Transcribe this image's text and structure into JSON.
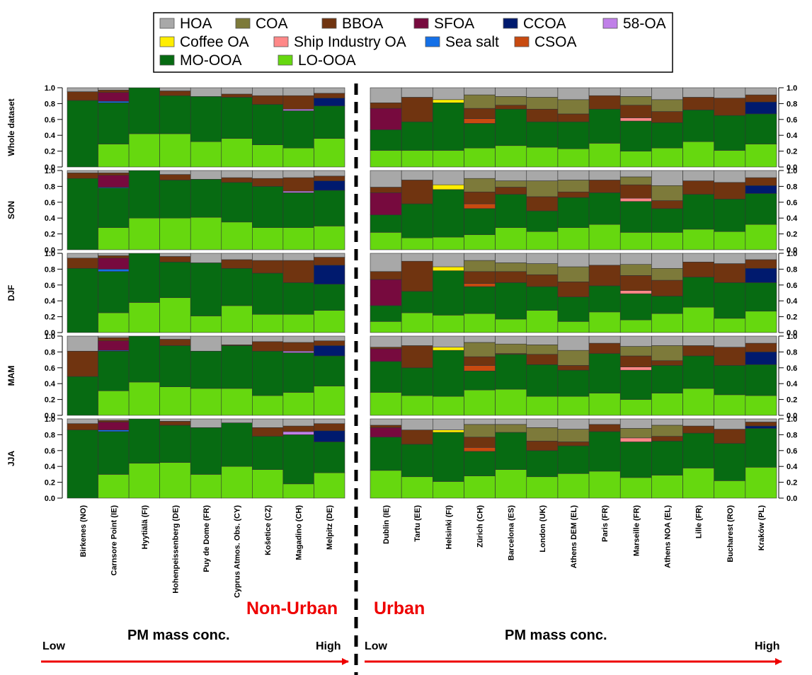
{
  "chart_data": {
    "type": "stacked-bar",
    "legend": [
      {
        "name": "HOA",
        "color": "#a8a8a8"
      },
      {
        "name": "COA",
        "color": "#7d7a3a"
      },
      {
        "name": "BBOA",
        "color": "#703410"
      },
      {
        "name": "SFOA",
        "color": "#770a3e"
      },
      {
        "name": "CCOA",
        "color": "#001a6e"
      },
      {
        "name": "58-OA",
        "color": "#c080e8"
      },
      {
        "name": "Coffee OA",
        "color": "#ffee00"
      },
      {
        "name": "Ship Industry OA",
        "color": "#ff8888"
      },
      {
        "name": "Sea salt",
        "color": "#1470e8"
      },
      {
        "name": "CSOA",
        "color": "#c84a10"
      },
      {
        "name": "MO-OOA",
        "color": "#076b12"
      },
      {
        "name": "LO-OOA",
        "color": "#66d80f"
      }
    ],
    "ylim": [
      0,
      1
    ],
    "yticks": [
      "0.0",
      "0.2",
      "0.4",
      "0.6",
      "0.8",
      "1.0"
    ],
    "panels": [
      "Whole dataset",
      "SON",
      "DJF",
      "MAM",
      "JJA"
    ],
    "groups": [
      {
        "name": "Non-Urban",
        "sites": [
          "Birkenes (NO)",
          "Carnsore Point (IE)",
          "Hyytiälä (FI)",
          "Hohenpeissenberg (DE)",
          "Puy de Dome (FR)",
          "Cyprus Atmos. Obs. (CY)",
          "Košetice (CZ)",
          "Magadino (CH)",
          "Melpitz (DE)"
        ],
        "data": {
          "Whole dataset": [
            {
              "HOA": 0.05,
              "BBOA": 0.11,
              "MO-OOA": 0.84
            },
            {
              "HOA": 0.03,
              "BBOA": 0.03,
              "SFOA": 0.11,
              "Sea salt": 0.02,
              "MO-OOA": 0.52,
              "LO-OOA": 0.29
            },
            {
              "MO-OOA": 0.58,
              "LO-OOA": 0.42
            },
            {
              "HOA": 0.04,
              "BBOA": 0.06,
              "MO-OOA": 0.48,
              "LO-OOA": 0.42
            },
            {
              "HOA": 0.11,
              "MO-OOA": 0.57,
              "LO-OOA": 0.32
            },
            {
              "HOA": 0.08,
              "BBOA": 0.04,
              "MO-OOA": 0.52,
              "LO-OOA": 0.36
            },
            {
              "HOA": 0.1,
              "BBOA": 0.11,
              "MO-OOA": 0.51,
              "LO-OOA": 0.28
            },
            {
              "HOA": 0.1,
              "BBOA": 0.17,
              "58-OA": 0.02,
              "MO-OOA": 0.47,
              "LO-OOA": 0.24
            },
            {
              "HOA": 0.07,
              "BBOA": 0.06,
              "CCOA": 0.1,
              "MO-OOA": 0.41,
              "LO-OOA": 0.36
            }
          ],
          "SON": [
            {
              "HOA": 0.03,
              "BBOA": 0.07,
              "MO-OOA": 0.9
            },
            {
              "HOA": 0.03,
              "BBOA": 0.03,
              "SFOA": 0.15,
              "Sea salt": 0.01,
              "MO-OOA": 0.5,
              "LO-OOA": 0.28
            },
            {
              "MO-OOA": 0.6,
              "LO-OOA": 0.4
            },
            {
              "HOA": 0.05,
              "BBOA": 0.07,
              "MO-OOA": 0.48,
              "LO-OOA": 0.4
            },
            {
              "HOA": 0.11,
              "MO-OOA": 0.48,
              "LO-OOA": 0.41
            },
            {
              "HOA": 0.09,
              "BBOA": 0.06,
              "MO-OOA": 0.5,
              "LO-OOA": 0.35
            },
            {
              "HOA": 0.1,
              "BBOA": 0.1,
              "MO-OOA": 0.52,
              "LO-OOA": 0.28
            },
            {
              "HOA": 0.09,
              "BBOA": 0.17,
              "58-OA": 0.02,
              "MO-OOA": 0.44,
              "LO-OOA": 0.28
            },
            {
              "HOA": 0.07,
              "BBOA": 0.06,
              "CCOA": 0.12,
              "MO-OOA": 0.45,
              "LO-OOA": 0.3
            }
          ],
          "DJF": [
            {
              "HOA": 0.06,
              "BBOA": 0.13,
              "MO-OOA": 0.81
            },
            {
              "HOA": 0.03,
              "BBOA": 0.03,
              "SFOA": 0.14,
              "Sea salt": 0.03,
              "MO-OOA": 0.52,
              "LO-OOA": 0.25
            },
            {
              "MO-OOA": 0.62,
              "LO-OOA": 0.38
            },
            {
              "HOA": 0.04,
              "BBOA": 0.07,
              "MO-OOA": 0.45,
              "LO-OOA": 0.44
            },
            {
              "HOA": 0.12,
              "MO-OOA": 0.67,
              "LO-OOA": 0.21
            },
            {
              "HOA": 0.08,
              "BBOA": 0.11,
              "MO-OOA": 0.47,
              "LO-OOA": 0.34
            },
            {
              "HOA": 0.09,
              "BBOA": 0.16,
              "MO-OOA": 0.52,
              "LO-OOA": 0.23
            },
            {
              "HOA": 0.09,
              "BBOA": 0.28,
              "MO-OOA": 0.4,
              "LO-OOA": 0.23
            },
            {
              "HOA": 0.05,
              "BBOA": 0.1,
              "CCOA": 0.24,
              "MO-OOA": 0.33,
              "LO-OOA": 0.28
            }
          ],
          "MAM": [
            {
              "HOA": 0.19,
              "BBOA": 0.32,
              "MO-OOA": 0.49
            },
            {
              "HOA": 0.02,
              "BBOA": 0.04,
              "SFOA": 0.12,
              "Sea salt": 0.01,
              "MO-OOA": 0.5,
              "LO-OOA": 0.31
            },
            {
              "MO-OOA": 0.58,
              "LO-OOA": 0.42
            },
            {
              "HOA": 0.04,
              "BBOA": 0.08,
              "MO-OOA": 0.52,
              "LO-OOA": 0.36
            },
            {
              "HOA": 0.19,
              "MO-OOA": 0.47,
              "LO-OOA": 0.34
            },
            {
              "HOA": 0.11,
              "BBOA": 0.01,
              "MO-OOA": 0.54,
              "LO-OOA": 0.34
            },
            {
              "HOA": 0.07,
              "BBOA": 0.12,
              "MO-OOA": 0.56,
              "LO-OOA": 0.25
            },
            {
              "HOA": 0.08,
              "BBOA": 0.11,
              "58-OA": 0.02,
              "MO-OOA": 0.5,
              "LO-OOA": 0.29
            },
            {
              "HOA": 0.06,
              "BBOA": 0.06,
              "CCOA": 0.13,
              "MO-OOA": 0.38,
              "LO-OOA": 0.37
            }
          ],
          "JJA": [
            {
              "HOA": 0.06,
              "BBOA": 0.08,
              "MO-OOA": 0.86
            },
            {
              "HOA": 0.02,
              "BBOA": 0.02,
              "SFOA": 0.1,
              "Sea salt": 0.02,
              "MO-OOA": 0.54,
              "LO-OOA": 0.3
            },
            {
              "MO-OOA": 0.56,
              "LO-OOA": 0.44
            },
            {
              "HOA": 0.03,
              "BBOA": 0.05,
              "MO-OOA": 0.47,
              "LO-OOA": 0.45
            },
            {
              "HOA": 0.11,
              "MO-OOA": 0.59,
              "LO-OOA": 0.3
            },
            {
              "HOA": 0.05,
              "MO-OOA": 0.55,
              "LO-OOA": 0.4
            },
            {
              "HOA": 0.11,
              "BBOA": 0.11,
              "MO-OOA": 0.42,
              "LO-OOA": 0.36
            },
            {
              "HOA": 0.09,
              "BBOA": 0.07,
              "58-OA": 0.04,
              "MO-OOA": 0.62,
              "LO-OOA": 0.18
            },
            {
              "HOA": 0.06,
              "BBOA": 0.09,
              "CCOA": 0.14,
              "MO-OOA": 0.39,
              "LO-OOA": 0.32
            }
          ]
        }
      },
      {
        "name": "Urban",
        "sites": [
          "Dublin (IE)",
          "Tartu (EE)",
          "Helsinki (FI)",
          "Zürich (CH)",
          "Barcelona (ES)",
          "London (UK)",
          "Athens DEM (EL)",
          "Paris (FR)",
          "Marseille (FR)",
          "Athens NOA (EL)",
          "Lille (FR)",
          "Bucharest (RO)",
          "Kraków (PL)"
        ],
        "data": {
          "Whole dataset": [
            {
              "HOA": 0.19,
              "BBOA": 0.07,
              "SFOA": 0.27,
              "MO-OOA": 0.26,
              "LO-OOA": 0.21
            },
            {
              "HOA": 0.12,
              "BBOA": 0.31,
              "MO-OOA": 0.36,
              "LO-OOA": 0.21
            },
            {
              "HOA": 0.15,
              "Coffee OA": 0.04,
              "MO-OOA": 0.6,
              "LO-OOA": 0.21
            },
            {
              "HOA": 0.09,
              "COA": 0.17,
              "BBOA": 0.13,
              "CSOA": 0.06,
              "MO-OOA": 0.31,
              "LO-OOA": 0.24
            },
            {
              "HOA": 0.11,
              "COA": 0.11,
              "BBOA": 0.05,
              "MO-OOA": 0.46,
              "LO-OOA": 0.27
            },
            {
              "HOA": 0.12,
              "COA": 0.15,
              "BBOA": 0.16,
              "MO-OOA": 0.32,
              "LO-OOA": 0.25
            },
            {
              "HOA": 0.15,
              "COA": 0.18,
              "BBOA": 0.1,
              "MO-OOA": 0.34,
              "LO-OOA": 0.23
            },
            {
              "HOA": 0.1,
              "BBOA": 0.17,
              "MO-OOA": 0.43,
              "LO-OOA": 0.3
            },
            {
              "HOA": 0.11,
              "COA": 0.11,
              "BBOA": 0.16,
              "Ship Industry OA": 0.04,
              "MO-OOA": 0.38,
              "LO-OOA": 0.2
            },
            {
              "HOA": 0.15,
              "COA": 0.15,
              "BBOA": 0.14,
              "MO-OOA": 0.32,
              "LO-OOA": 0.24
            },
            {
              "HOA": 0.12,
              "BBOA": 0.16,
              "MO-OOA": 0.4,
              "LO-OOA": 0.32
            },
            {
              "HOA": 0.13,
              "BBOA": 0.22,
              "MO-OOA": 0.44,
              "LO-OOA": 0.21
            },
            {
              "HOA": 0.09,
              "BBOA": 0.09,
              "CCOA": 0.15,
              "MO-OOA": 0.38,
              "LO-OOA": 0.29
            }
          ],
          "SON": [
            {
              "HOA": 0.21,
              "BBOA": 0.07,
              "SFOA": 0.28,
              "MO-OOA": 0.22,
              "LO-OOA": 0.22
            },
            {
              "HOA": 0.12,
              "BBOA": 0.3,
              "MO-OOA": 0.43,
              "LO-OOA": 0.15
            },
            {
              "HOA": 0.18,
              "Coffee OA": 0.06,
              "MO-OOA": 0.6,
              "LO-OOA": 0.16
            },
            {
              "HOA": 0.1,
              "COA": 0.17,
              "BBOA": 0.15,
              "CSOA": 0.06,
              "MO-OOA": 0.33,
              "LO-OOA": 0.19
            },
            {
              "HOA": 0.13,
              "COA": 0.08,
              "BBOA": 0.09,
              "MO-OOA": 0.42,
              "LO-OOA": 0.28
            },
            {
              "HOA": 0.13,
              "COA": 0.2,
              "BBOA": 0.18,
              "MO-OOA": 0.26,
              "LO-OOA": 0.23
            },
            {
              "HOA": 0.12,
              "COA": 0.15,
              "BBOA": 0.07,
              "MO-OOA": 0.38,
              "LO-OOA": 0.28
            },
            {
              "HOA": 0.12,
              "BBOA": 0.16,
              "MO-OOA": 0.4,
              "LO-OOA": 0.32
            },
            {
              "HOA": 0.08,
              "COA": 0.1,
              "BBOA": 0.17,
              "Ship Industry OA": 0.04,
              "MO-OOA": 0.39,
              "LO-OOA": 0.22
            },
            {
              "HOA": 0.19,
              "COA": 0.19,
              "BBOA": 0.1,
              "MO-OOA": 0.3,
              "LO-OOA": 0.22
            },
            {
              "HOA": 0.13,
              "BBOA": 0.17,
              "MO-OOA": 0.44,
              "LO-OOA": 0.26
            },
            {
              "HOA": 0.15,
              "BBOA": 0.21,
              "MO-OOA": 0.41,
              "LO-OOA": 0.23
            },
            {
              "HOA": 0.09,
              "BBOA": 0.1,
              "CCOA": 0.1,
              "MO-OOA": 0.39,
              "LO-OOA": 0.32
            }
          ],
          "DJF": [
            {
              "HOA": 0.23,
              "BBOA": 0.1,
              "SFOA": 0.33,
              "MO-OOA": 0.2,
              "LO-OOA": 0.14
            },
            {
              "HOA": 0.1,
              "BBOA": 0.38,
              "MO-OOA": 0.27,
              "LO-OOA": 0.25
            },
            {
              "HOA": 0.17,
              "Coffee OA": 0.05,
              "MO-OOA": 0.56,
              "LO-OOA": 0.22
            },
            {
              "HOA": 0.09,
              "COA": 0.14,
              "BBOA": 0.15,
              "CSOA": 0.04,
              "MO-OOA": 0.34,
              "LO-OOA": 0.24
            },
            {
              "HOA": 0.12,
              "COA": 0.11,
              "BBOA": 0.14,
              "MO-OOA": 0.46,
              "LO-OOA": 0.17
            },
            {
              "HOA": 0.13,
              "COA": 0.14,
              "BBOA": 0.15,
              "MO-OOA": 0.3,
              "LO-OOA": 0.28
            },
            {
              "HOA": 0.17,
              "COA": 0.19,
              "BBOA": 0.19,
              "MO-OOA": 0.31,
              "LO-OOA": 0.14
            },
            {
              "HOA": 0.15,
              "BBOA": 0.26,
              "MO-OOA": 0.33,
              "LO-OOA": 0.26
            },
            {
              "HOA": 0.14,
              "COA": 0.14,
              "BBOA": 0.19,
              "Ship Industry OA": 0.04,
              "MO-OOA": 0.33,
              "LO-OOA": 0.16
            },
            {
              "HOA": 0.19,
              "COA": 0.15,
              "BBOA": 0.2,
              "MO-OOA": 0.22,
              "LO-OOA": 0.24
            },
            {
              "HOA": 0.11,
              "BBOA": 0.19,
              "MO-OOA": 0.38,
              "LO-OOA": 0.32
            },
            {
              "HOA": 0.13,
              "BBOA": 0.24,
              "MO-OOA": 0.45,
              "LO-OOA": 0.18
            },
            {
              "HOA": 0.08,
              "BBOA": 0.11,
              "CCOA": 0.18,
              "MO-OOA": 0.36,
              "LO-OOA": 0.27
            }
          ],
          "MAM": [
            {
              "HOA": 0.14,
              "BBOA": 0.02,
              "SFOA": 0.16,
              "MO-OOA": 0.39,
              "LO-OOA": 0.29
            },
            {
              "HOA": 0.12,
              "BBOA": 0.28,
              "MO-OOA": 0.35,
              "LO-OOA": 0.25
            },
            {
              "HOA": 0.14,
              "Coffee OA": 0.04,
              "MO-OOA": 0.58,
              "LO-OOA": 0.24
            },
            {
              "HOA": 0.08,
              "COA": 0.18,
              "BBOA": 0.11,
              "CSOA": 0.07,
              "MO-OOA": 0.24,
              "LO-OOA": 0.32
            },
            {
              "HOA": 0.1,
              "COA": 0.12,
              "BBOA": 0.01,
              "MO-OOA": 0.44,
              "LO-OOA": 0.33
            },
            {
              "HOA": 0.11,
              "COA": 0.12,
              "BBOA": 0.13,
              "MO-OOA": 0.4,
              "LO-OOA": 0.24
            },
            {
              "HOA": 0.18,
              "COA": 0.19,
              "BBOA": 0.06,
              "MO-OOA": 0.33,
              "LO-OOA": 0.24
            },
            {
              "HOA": 0.09,
              "BBOA": 0.13,
              "MO-OOA": 0.5,
              "LO-OOA": 0.28
            },
            {
              "HOA": 0.13,
              "COA": 0.12,
              "BBOA": 0.14,
              "Ship Industry OA": 0.04,
              "MO-OOA": 0.37,
              "LO-OOA": 0.2
            },
            {
              "HOA": 0.12,
              "COA": 0.19,
              "BBOA": 0.06,
              "MO-OOA": 0.35,
              "LO-OOA": 0.28
            },
            {
              "HOA": 0.12,
              "BBOA": 0.13,
              "MO-OOA": 0.41,
              "LO-OOA": 0.34
            },
            {
              "HOA": 0.14,
              "BBOA": 0.23,
              "MO-OOA": 0.37,
              "LO-OOA": 0.26
            },
            {
              "HOA": 0.09,
              "BBOA": 0.11,
              "CCOA": 0.16,
              "MO-OOA": 0.39,
              "LO-OOA": 0.25
            }
          ],
          "JJA": [
            {
              "HOA": 0.08,
              "BBOA": 0.03,
              "SFOA": 0.12,
              "MO-OOA": 0.42,
              "LO-OOA": 0.35
            },
            {
              "HOA": 0.14,
              "BBOA": 0.18,
              "MO-OOA": 0.41,
              "LO-OOA": 0.27
            },
            {
              "HOA": 0.14,
              "Coffee OA": 0.03,
              "MO-OOA": 0.62,
              "LO-OOA": 0.21
            },
            {
              "HOA": 0.07,
              "COA": 0.16,
              "BBOA": 0.13,
              "CSOA": 0.05,
              "MO-OOA": 0.31,
              "LO-OOA": 0.28
            },
            {
              "HOA": 0.07,
              "COA": 0.1,
              "MO-OOA": 0.47,
              "LO-OOA": 0.36
            },
            {
              "HOA": 0.11,
              "COA": 0.17,
              "BBOA": 0.12,
              "MO-OOA": 0.33,
              "LO-OOA": 0.27
            },
            {
              "HOA": 0.13,
              "COA": 0.16,
              "BBOA": 0.05,
              "MO-OOA": 0.35,
              "LO-OOA": 0.31
            },
            {
              "HOA": 0.07,
              "BBOA": 0.09,
              "MO-OOA": 0.5,
              "LO-OOA": 0.34
            },
            {
              "HOA": 0.12,
              "COA": 0.12,
              "Ship Industry OA": 0.05,
              "MO-OOA": 0.45,
              "LO-OOA": 0.26
            },
            {
              "HOA": 0.08,
              "COA": 0.14,
              "BBOA": 0.06,
              "MO-OOA": 0.43,
              "LO-OOA": 0.29
            },
            {
              "HOA": 0.09,
              "BBOA": 0.09,
              "MO-OOA": 0.44,
              "LO-OOA": 0.38
            },
            {
              "HOA": 0.13,
              "BBOA": 0.18,
              "MO-OOA": 0.47,
              "LO-OOA": 0.22
            },
            {
              "HOA": 0.04,
              "BBOA": 0.05,
              "CCOA": 0.03,
              "MO-OOA": 0.49,
              "LO-OOA": 0.39
            }
          ]
        }
      }
    ]
  },
  "annotations": {
    "non_urban_label": "Non-Urban",
    "urban_label": "Urban",
    "left_axis_title": "PM mass conc.",
    "left_low": "Low",
    "left_high": "High",
    "right_axis_title": "PM mass conc.",
    "right_low": "Low",
    "right_high": "High",
    "arrow_color": "#ee0000",
    "group_label_color": "#ee0000"
  }
}
